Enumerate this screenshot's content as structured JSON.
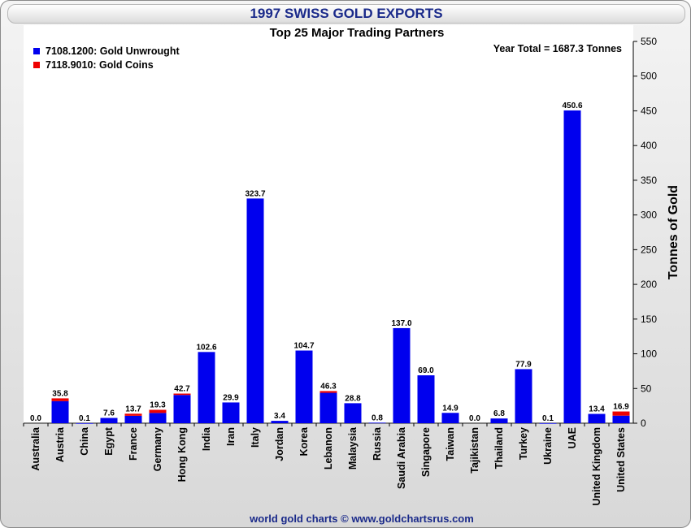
{
  "title": "1997 SWISS GOLD EXPORTS",
  "footer": "world gold charts © www.goldchartsrus.com",
  "colors": {
    "unwrought": "#0000ee",
    "coins": "#ee0000",
    "title": "#1a2a8a"
  },
  "chart_data": {
    "type": "bar",
    "title": "Top 25 Major Trading Partners",
    "annotation": "Year Total = 1687.3 Tonnes",
    "ylabel": "Tonnes of Gold",
    "ylim": [
      0,
      550
    ],
    "yticks": [
      0,
      50,
      100,
      150,
      200,
      250,
      300,
      350,
      400,
      450,
      500,
      550
    ],
    "legend_position": "top-left",
    "categories": [
      "Australia",
      "Austria",
      "China",
      "Egypt",
      "France",
      "Germany",
      "Hong Kong",
      "India",
      "Iran",
      "Italy",
      "Jordan",
      "Korea",
      "Lebanon",
      "Malaysia",
      "Russia",
      "Saudi Arabia",
      "Singapore",
      "Taiwan",
      "Tajikistan",
      "Thailand",
      "Turkey",
      "Ukraine",
      "UAE",
      "United Kingdom",
      "United States"
    ],
    "totals": [
      "0.0",
      "35.8",
      "0.1",
      "7.6",
      "13.7",
      "19.3",
      "42.7",
      "102.6",
      "29.9",
      "323.7",
      "3.4",
      "104.7",
      "46.3",
      "28.8",
      "0.8",
      "137.0",
      "69.0",
      "14.9",
      "0.0",
      "6.8",
      "77.9",
      "0.1",
      "450.6",
      "13.4",
      "16.9"
    ],
    "series": [
      {
        "name": "7108.1200: Gold Unwrought",
        "color": "#0000ee",
        "values": [
          0.0,
          31.8,
          0.1,
          7.6,
          10.7,
          14.8,
          40.7,
          102.6,
          29.9,
          323.7,
          3.4,
          104.7,
          43.8,
          28.8,
          0.8,
          137.0,
          69.0,
          14.9,
          0.0,
          6.8,
          77.9,
          0.1,
          450.6,
          13.4,
          10.9
        ]
      },
      {
        "name": "7118.9010: Gold Coins",
        "color": "#ee0000",
        "values": [
          0.0,
          4.0,
          0.0,
          0.0,
          3.0,
          4.5,
          2.0,
          0.0,
          0.0,
          0.0,
          0.0,
          0.0,
          2.5,
          0.0,
          0.0,
          0.0,
          0.0,
          0.0,
          0.0,
          0.0,
          0.0,
          0.0,
          0.0,
          0.0,
          6.0
        ]
      }
    ]
  }
}
